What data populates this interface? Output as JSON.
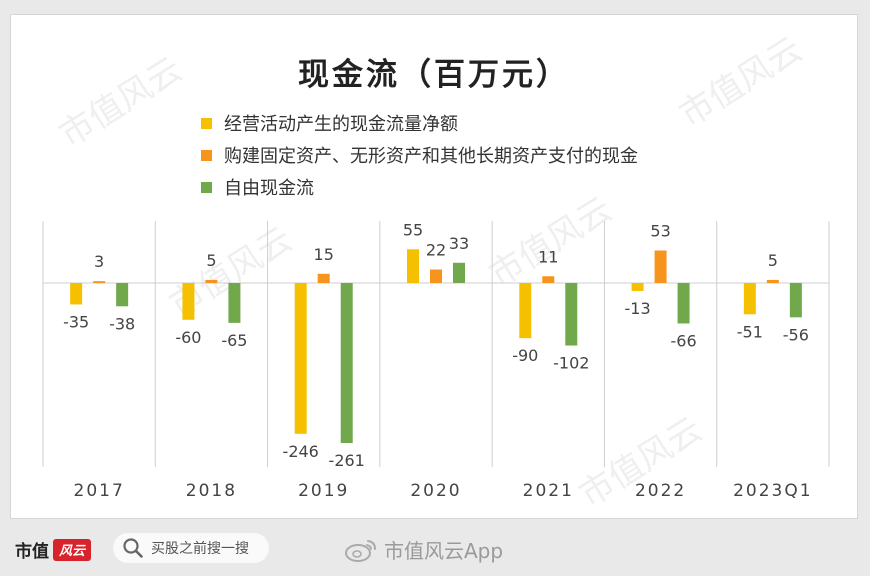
{
  "colors": {
    "operating": "#f5c000",
    "capex": "#f7941d",
    "fcf": "#70a84b",
    "axis": "#cfcfcf",
    "label": "#444444",
    "brand_red": "#d7232b"
  },
  "chart_data": {
    "type": "bar",
    "title": "现金流（百万元）",
    "categories": [
      "2017",
      "2018",
      "2019",
      "2020",
      "2021",
      "2022",
      "2023Q1"
    ],
    "series": [
      {
        "name": "经营活动产生的现金流量净额",
        "values": [
          -35,
          -60,
          -246,
          55,
          -90,
          -13,
          -51
        ]
      },
      {
        "name": "购建固定资产、无形资产和其他长期资产支付的现金",
        "values": [
          3,
          5,
          15,
          22,
          11,
          53,
          5
        ]
      },
      {
        "name": "自由现金流",
        "values": [
          -38,
          -65,
          -261,
          33,
          -102,
          -66,
          -56
        ]
      }
    ],
    "legend_position": "top-left",
    "grid": false,
    "ylim": [
      -261,
      55
    ]
  },
  "watermark": "市值风云",
  "footer": {
    "brand_name": "市值",
    "brand_mark": "风云",
    "search_placeholder": "买股之前搜一搜",
    "credit": "市值风云App",
    "icons": [
      "search-icon",
      "weibo-icon"
    ]
  }
}
